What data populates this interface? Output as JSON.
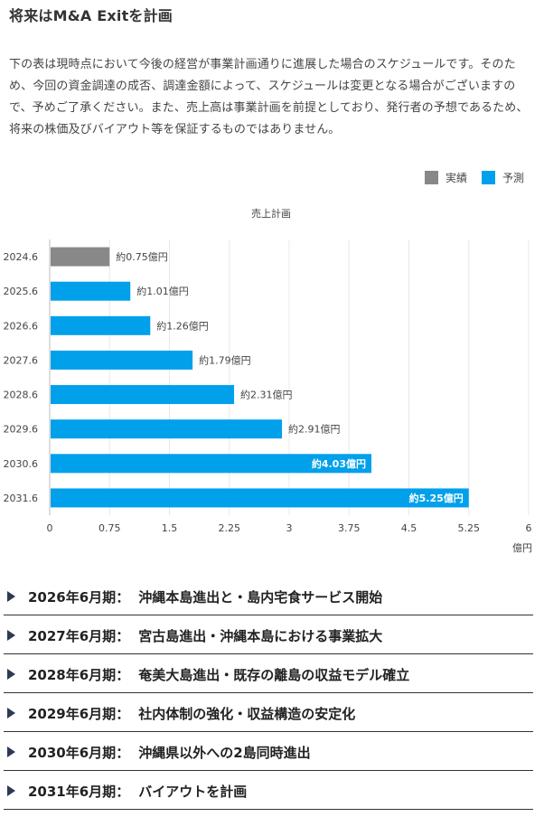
{
  "title": "将来はM&A Exitを計画",
  "description": "下の表は現時点において今後の経営が事業計画通りに進展した場合のスケジュールです。そのため、今回の資金調達の成否、調達金額によって、スケジュールは変更となる場合がございますので、予めご了承ください。また、売上高は事業計画を前提としており、発行者の予想であるため、将来の株価及びバイアウト等を保証するものではありません。",
  "legend": [
    {
      "label": "実績",
      "color": "#888888"
    },
    {
      "label": "予測",
      "color": "#00a0ea"
    }
  ],
  "chart_data": {
    "type": "bar",
    "orientation": "horizontal",
    "title": "売上計画",
    "xlabel": "億円",
    "ylabel": "",
    "xlim": [
      0,
      6
    ],
    "xticks": [
      "0",
      "0.75",
      "1.5",
      "2.25",
      "3",
      "3.75",
      "4.5",
      "5.25",
      "6"
    ],
    "categories": [
      "2024.6",
      "2025.6",
      "2026.6",
      "2027.6",
      "2028.6",
      "2029.6",
      "2030.6",
      "2031.6"
    ],
    "values": [
      0.75,
      1.01,
      1.26,
      1.79,
      2.31,
      2.91,
      4.03,
      5.25
    ],
    "series_type": [
      "実績",
      "予測",
      "予測",
      "予測",
      "予測",
      "予測",
      "予測",
      "予測"
    ],
    "data_labels": [
      "約0.75億円",
      "約1.01億円",
      "約1.26億円",
      "約1.79億円",
      "約2.31億円",
      "約2.91億円",
      "約4.03億円",
      "約5.25億円"
    ],
    "label_inside": [
      false,
      false,
      false,
      false,
      false,
      false,
      true,
      true
    ],
    "grid": true,
    "legend_position": "top-right",
    "colors": {
      "実績": "#888888",
      "予測": "#00a0ea"
    }
  },
  "milestones": [
    {
      "period": "2026年6月期",
      "sep": "：",
      "text": "沖縄本島進出と・島内宅食サービス開始"
    },
    {
      "period": "2027年6月期",
      "sep": "：",
      "text": "宮古島進出・沖縄本島における事業拡大"
    },
    {
      "period": "2028年6月期",
      "sep": "：",
      "text": "奄美大島進出・既存の離島の収益モデル確立"
    },
    {
      "period": "2029年6月期",
      "sep": "：",
      "text": "社内体制の強化・収益構造の安定化"
    },
    {
      "period": "2030年6月期",
      "sep": "：",
      "text": "沖縄県以外への2島同時進出"
    },
    {
      "period": "2031年6月期",
      "sep": "：",
      "text": "バイアウトを計画"
    }
  ]
}
